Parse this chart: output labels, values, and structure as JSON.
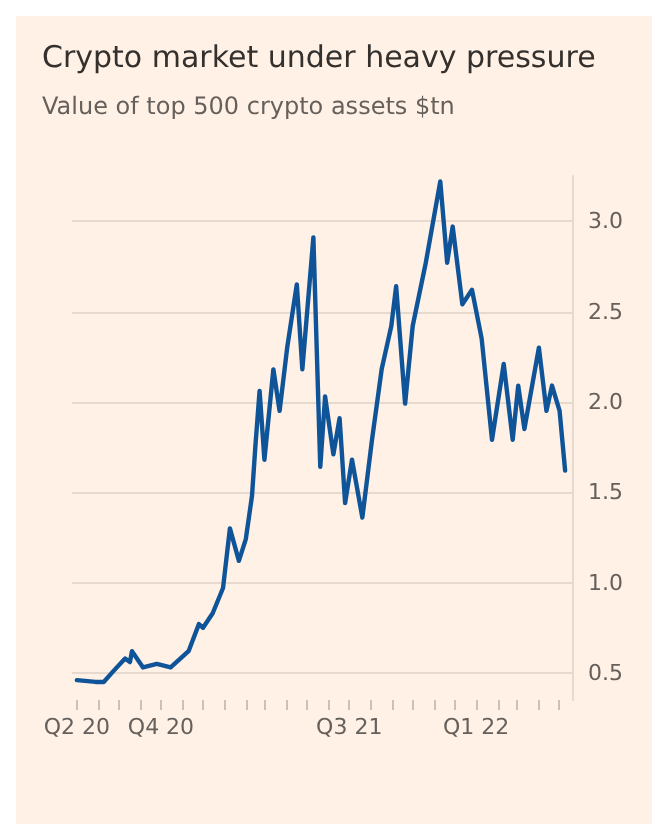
{
  "chart_data": {
    "type": "line",
    "title": "Crypto market under heavy pressure",
    "subtitle": "Value of top 500 crypto assets $tn",
    "x": [
      "2020-06-01",
      "2020-06-28",
      "2020-07-10",
      "2020-07-24",
      "2020-08-10",
      "2020-08-17",
      "2020-08-20",
      "2020-09-05",
      "2020-09-25",
      "2020-10-15",
      "2020-11-10",
      "2020-11-25",
      "2020-12-01",
      "2020-12-15",
      "2020-12-30",
      "2021-01-09",
      "2021-01-22",
      "2021-02-01",
      "2021-02-10",
      "2021-02-15",
      "2021-02-21",
      "2021-02-28",
      "2021-03-13",
      "2021-03-22",
      "2021-04-02",
      "2021-04-16",
      "2021-04-24",
      "2021-05-10",
      "2021-05-20",
      "2021-05-27",
      "2021-06-08",
      "2021-06-17",
      "2021-06-25",
      "2021-07-05",
      "2021-07-20",
      "2021-08-03",
      "2021-08-17",
      "2021-08-31",
      "2021-09-07",
      "2021-09-20",
      "2021-10-01",
      "2021-10-20",
      "2021-11-10",
      "2021-11-20",
      "2021-11-28",
      "2021-12-12",
      "2021-12-26",
      "2022-01-09",
      "2022-01-24",
      "2022-02-10",
      "2022-02-23",
      "2022-03-03",
      "2022-03-12",
      "2022-04-02",
      "2022-04-13",
      "2022-04-21",
      "2022-05-02",
      "2022-05-10"
    ],
    "series": [
      {
        "color": "#0f5499",
        "values": [
          0.46,
          0.45,
          0.45,
          0.51,
          0.58,
          0.56,
          0.62,
          0.53,
          0.55,
          0.53,
          0.62,
          0.77,
          0.75,
          0.83,
          0.97,
          1.3,
          1.12,
          1.24,
          1.48,
          1.76,
          2.06,
          1.68,
          2.18,
          1.95,
          2.3,
          2.65,
          2.18,
          2.91,
          1.64,
          2.03,
          1.71,
          1.91,
          1.44,
          1.68,
          1.36,
          1.79,
          2.18,
          2.42,
          2.64,
          1.99,
          2.42,
          2.77,
          3.22,
          2.77,
          2.97,
          2.54,
          2.62,
          2.35,
          1.79,
          2.21,
          1.79,
          2.09,
          1.85,
          2.3,
          1.95,
          2.09,
          1.95,
          1.62
        ]
      }
    ],
    "xlim": [
      "2020-05-25",
      "2022-05-20"
    ],
    "xticks": [
      {
        "value": "2020-06-01",
        "label": "Q2 20"
      },
      {
        "value": "2020-07-01",
        "label": null
      },
      {
        "value": "2020-08-01",
        "label": null
      },
      {
        "value": "2020-09-01",
        "label": null
      },
      {
        "value": "2020-10-01",
        "label": "Q4 20"
      },
      {
        "value": "2020-11-01",
        "label": null
      },
      {
        "value": "2020-12-01",
        "label": null
      },
      {
        "value": "2021-01-01",
        "label": null
      },
      {
        "value": "2021-02-01",
        "label": null
      },
      {
        "value": "2021-03-01",
        "label": null
      },
      {
        "value": "2021-04-01",
        "label": null
      },
      {
        "value": "2021-05-01",
        "label": null
      },
      {
        "value": "2021-06-01",
        "label": null
      },
      {
        "value": "2021-07-01",
        "label": "Q3 21"
      },
      {
        "value": "2021-08-01",
        "label": null
      },
      {
        "value": "2021-09-01",
        "label": null
      },
      {
        "value": "2021-10-01",
        "label": null
      },
      {
        "value": "2021-11-01",
        "label": null
      },
      {
        "value": "2021-12-01",
        "label": null
      },
      {
        "value": "2022-01-01",
        "label": "Q1 22"
      },
      {
        "value": "2022-02-01",
        "label": null
      },
      {
        "value": "2022-03-01",
        "label": null
      },
      {
        "value": "2022-04-01",
        "label": null
      },
      {
        "value": "2022-05-01",
        "label": null
      }
    ],
    "yticks": [
      {
        "value": 0.5,
        "label": "0.5"
      },
      {
        "value": 1.0,
        "label": "1.0"
      },
      {
        "value": 1.5,
        "label": "1.5"
      },
      {
        "value": 2.0,
        "label": "2.0"
      },
      {
        "value": 2.5,
        "label": "2.5"
      },
      {
        "value": 3.0,
        "label": "3.0"
      }
    ],
    "ylim": [
      0.35,
      3.25
    ],
    "grid": "y",
    "marker": "none",
    "line_style": "solid"
  }
}
